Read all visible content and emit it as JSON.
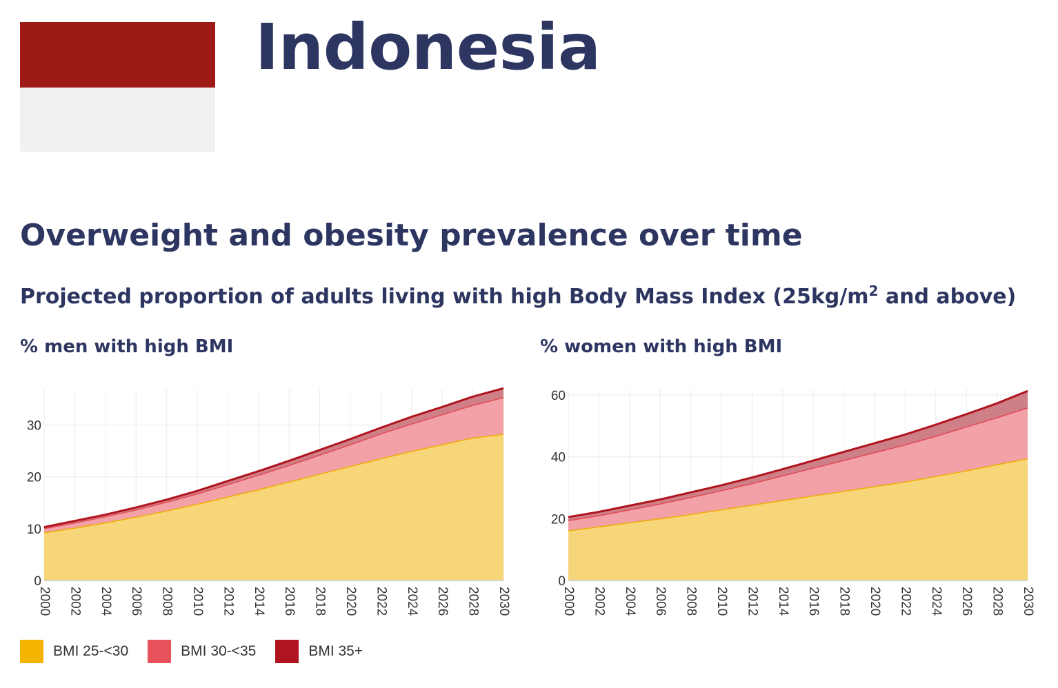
{
  "header": {
    "country": "Indonesia",
    "flag_colors": [
      "#9e1a17",
      "#f1f1f1"
    ]
  },
  "section": {
    "title": "Overweight and obesity prevalence over time",
    "subtitle_main": "Projected proportion of adults living with high Body Mass Index (25kg/m",
    "subtitle_sup": "2",
    "subtitle_tail": " and above)"
  },
  "legend": [
    {
      "label": "BMI 25-<30",
      "color": "#f5b400"
    },
    {
      "label": "BMI 30-<35",
      "color": "#e8525a"
    },
    {
      "label": "BMI 35+",
      "color": "#b0141e"
    }
  ],
  "chart_data": [
    {
      "type": "area",
      "stacked": true,
      "title": "% men with high BMI",
      "xlabel": "",
      "ylabel": "",
      "x": [
        2000,
        2002,
        2004,
        2006,
        2008,
        2010,
        2012,
        2014,
        2016,
        2018,
        2020,
        2022,
        2024,
        2026,
        2028,
        2030
      ],
      "x_ticks": [
        "2000",
        "2002",
        "2004",
        "2006",
        "2008",
        "2010",
        "2012",
        "2014",
        "2016",
        "2018",
        "2020",
        "2022",
        "2024",
        "2026",
        "2028",
        "2030"
      ],
      "y_ticks": [
        0,
        10,
        20,
        30
      ],
      "ylim": [
        0,
        37
      ],
      "series": [
        {
          "name": "BMI 25-<30",
          "values": [
            9.3,
            10.2,
            11.2,
            12.3,
            13.5,
            14.8,
            16.2,
            17.6,
            19.1,
            20.6,
            22.1,
            23.6,
            25.0,
            26.3,
            27.6,
            28.3
          ]
        },
        {
          "name": "BMI 30-<35",
          "values": [
            0.8,
            1.0,
            1.2,
            1.4,
            1.7,
            2.0,
            2.4,
            2.8,
            3.2,
            3.7,
            4.2,
            4.8,
            5.3,
            5.8,
            6.3,
            7.1
          ]
        },
        {
          "name": "BMI 35+",
          "values": [
            0.2,
            0.3,
            0.3,
            0.4,
            0.4,
            0.5,
            0.6,
            0.7,
            0.8,
            0.9,
            1.0,
            1.1,
            1.3,
            1.4,
            1.6,
            1.7
          ]
        }
      ]
    },
    {
      "type": "area",
      "stacked": true,
      "title": "% women with high BMI",
      "xlabel": "",
      "ylabel": "",
      "x": [
        2000,
        2002,
        2004,
        2006,
        2008,
        2010,
        2012,
        2014,
        2016,
        2018,
        2020,
        2022,
        2024,
        2026,
        2028,
        2030
      ],
      "x_ticks": [
        "2000",
        "2002",
        "2004",
        "2006",
        "2008",
        "2010",
        "2012",
        "2014",
        "2016",
        "2018",
        "2020",
        "2022",
        "2024",
        "2026",
        "2028",
        "2030"
      ],
      "y_ticks": [
        0,
        20,
        40,
        60
      ],
      "ylim": [
        0,
        62
      ],
      "series": [
        {
          "name": "BMI 25-<30",
          "values": [
            16.2,
            17.5,
            18.8,
            20.1,
            21.5,
            23.0,
            24.5,
            26.0,
            27.5,
            29.0,
            30.5,
            32.0,
            33.8,
            35.6,
            37.6,
            39.5
          ]
        },
        {
          "name": "BMI 30-<35",
          "values": [
            3.3,
            3.6,
            4.2,
            4.8,
            5.5,
            6.2,
            7.0,
            8.0,
            9.0,
            10.0,
            11.0,
            12.0,
            13.0,
            14.2,
            15.2,
            16.5
          ]
        },
        {
          "name": "BMI 35+",
          "values": [
            1.0,
            1.1,
            1.2,
            1.3,
            1.5,
            1.6,
            1.8,
            2.0,
            2.3,
            2.6,
            2.9,
            3.2,
            3.6,
            4.0,
            4.5,
            5.3
          ]
        }
      ]
    }
  ]
}
